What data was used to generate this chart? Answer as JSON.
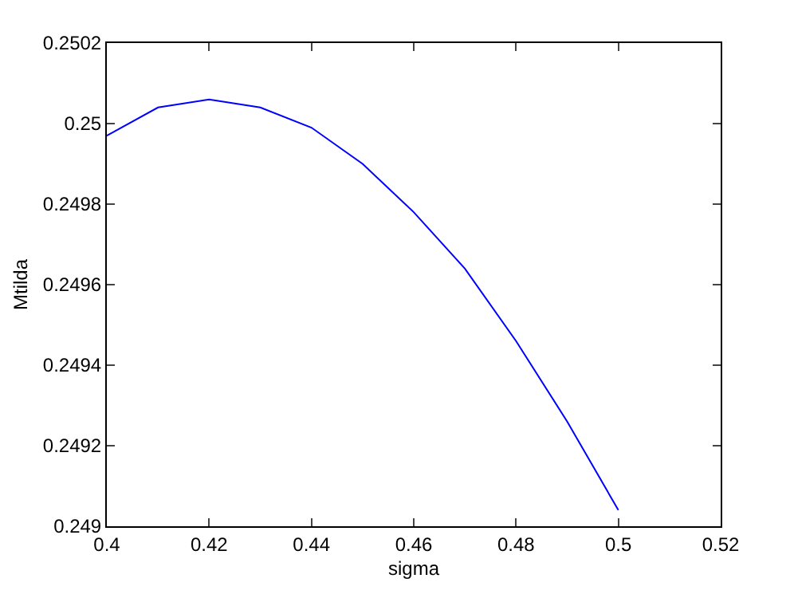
{
  "chart_data": {
    "type": "line",
    "xlabel": "sigma",
    "ylabel": "Mtilda",
    "x": [
      0.4,
      0.41,
      0.42,
      0.43,
      0.44,
      0.45,
      0.46,
      0.47,
      0.48,
      0.49,
      0.5
    ],
    "series": [
      {
        "color": "#0000ff",
        "values": [
          0.24997,
          0.25004,
          0.25006,
          0.25004,
          0.24999,
          0.2499,
          0.24978,
          0.24964,
          0.24946,
          0.24926,
          0.24904
        ]
      }
    ],
    "xlim": [
      0.4,
      0.52
    ],
    "xticks": [
      0.4,
      0.42,
      0.44,
      0.46,
      0.48,
      0.5,
      0.52
    ],
    "ylim": [
      0.249,
      0.2502
    ],
    "yticks": [
      0.249,
      0.2492,
      0.2494,
      0.2496,
      0.2498,
      0.25,
      0.2502
    ],
    "grid": false,
    "marker": "none",
    "line_style": "solid"
  }
}
